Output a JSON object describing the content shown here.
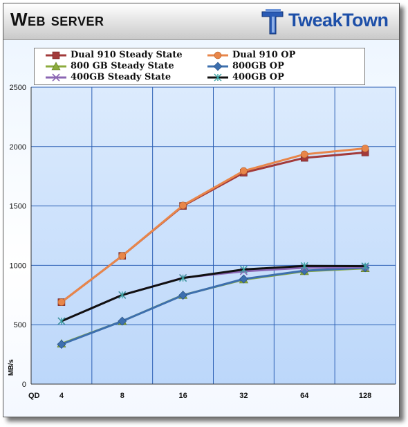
{
  "header": {
    "title": "Web server",
    "logo_text": "TweakTown"
  },
  "chart_data": {
    "type": "line",
    "title": "Web server",
    "xlabel": "QD",
    "ylabel": "MB/s",
    "categories": [
      "4",
      "8",
      "16",
      "32",
      "64",
      "128"
    ],
    "ylim": [
      0,
      2500
    ],
    "yticks": [
      0,
      500,
      1000,
      1500,
      2000,
      2500
    ],
    "grid": true,
    "legend_position": "top",
    "series": [
      {
        "name": "Dual 910 Steady State",
        "color": "#a23a3a",
        "marker": "square",
        "values": [
          690,
          1080,
          1500,
          1780,
          1905,
          1950
        ]
      },
      {
        "name": "Dual 910 OP",
        "color": "#e8864a",
        "marker": "circle",
        "values": [
          690,
          1080,
          1505,
          1795,
          1935,
          1985
        ]
      },
      {
        "name": "800 GB Steady State",
        "color": "#8cab3c",
        "marker": "triangle",
        "values": [
          340,
          530,
          750,
          880,
          950,
          975
        ]
      },
      {
        "name": "800GB OP",
        "color": "#3d6fae",
        "marker": "diamond",
        "values": [
          335,
          530,
          748,
          885,
          955,
          980
        ]
      },
      {
        "name": "400GB Steady State",
        "color": "#8b66b3",
        "marker": "x",
        "values": [
          530,
          750,
          895,
          950,
          980,
          985
        ]
      },
      {
        "name": "400GB OP",
        "color": "#111111",
        "marker": "star",
        "values": [
          530,
          750,
          893,
          965,
          995,
          993
        ]
      }
    ]
  }
}
